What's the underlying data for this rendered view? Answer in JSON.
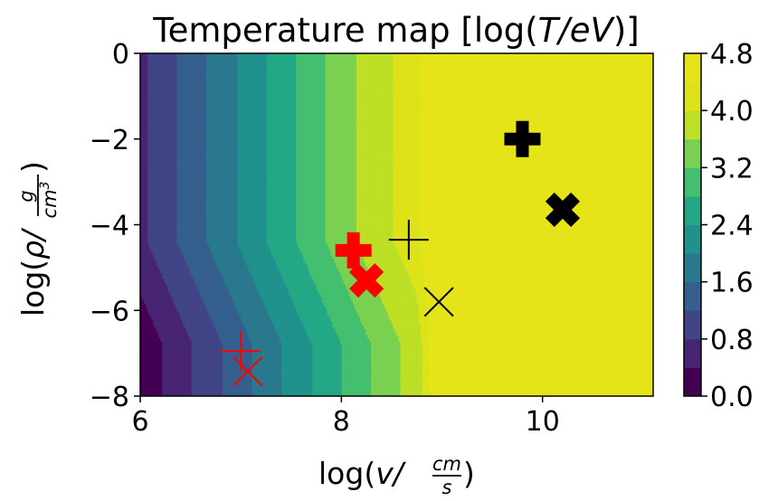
{
  "chart_data": {
    "type": "heatmap",
    "title": "Temperature map [log(T/eV)]",
    "title_parts": {
      "prefix": "Temperature map [log(",
      "var": "T/eV",
      "suffix": ")]"
    },
    "xlabel": "log(v/cm/s)",
    "xlabel_parts": {
      "fn": "log",
      "var": "v/",
      "num": "cm",
      "den": "s"
    },
    "ylabel": "log(ρ/g/cm³)",
    "ylabel_parts": {
      "fn": "log",
      "var": "ρ/",
      "num": "g",
      "den": "cm",
      "den_exp": "3"
    },
    "xlim": [
      6,
      11.1
    ],
    "ylim": [
      -8,
      0
    ],
    "xticks": [
      6,
      8,
      10
    ],
    "xtick_labels": [
      "6",
      "8",
      "10"
    ],
    "yticks": [
      0,
      -2,
      -4,
      -6,
      -8
    ],
    "ytick_labels": [
      "0",
      "−2",
      "−4",
      "−6",
      "−8"
    ],
    "colorbar": {
      "min": 0,
      "max": 4.8,
      "ticks": [
        0,
        0.8,
        1.6,
        2.4,
        3.2,
        4.0,
        4.8
      ],
      "tick_labels": [
        "0.0",
        "0.8",
        "1.6",
        "2.4",
        "3.2",
        "4.0",
        "4.8"
      ],
      "levels": [
        0,
        0.4,
        0.8,
        1.2,
        1.6,
        2.0,
        2.4,
        2.8,
        3.2,
        3.6,
        4.0,
        4.4,
        4.8
      ],
      "colors": [
        "#440154",
        "#482475",
        "#414487",
        "#355f8d",
        "#2a788e",
        "#21918c",
        "#22a884",
        "#44bf70",
        "#7ad151",
        "#bddf26",
        "#dde318",
        "#e5e419"
      ]
    },
    "markers": [
      {
        "shape": "plus",
        "color": "#ff0000",
        "size": "large",
        "x": 8.12,
        "y": -4.6
      },
      {
        "shape": "x",
        "color": "#ff0000",
        "size": "large",
        "x": 8.25,
        "y": -5.3
      },
      {
        "shape": "plus",
        "color": "#000000",
        "size": "large",
        "x": 9.8,
        "y": -2.0
      },
      {
        "shape": "x",
        "color": "#000000",
        "size": "large",
        "x": 10.2,
        "y": -3.65
      },
      {
        "shape": "plus",
        "color": "#000000",
        "size": "small",
        "x": 8.67,
        "y": -4.35
      },
      {
        "shape": "x",
        "color": "#000000",
        "size": "small",
        "x": 8.97,
        "y": -5.8
      },
      {
        "shape": "plus",
        "color": "#ff0000",
        "size": "small",
        "x": 7.0,
        "y": -6.95
      },
      {
        "shape": "x",
        "color": "#ff0000",
        "size": "small",
        "x": 7.07,
        "y": -7.42
      }
    ]
  }
}
